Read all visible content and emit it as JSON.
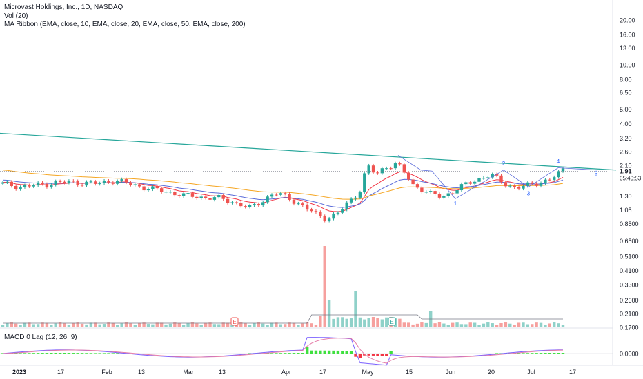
{
  "legend": {
    "title": "Microvast Holdings, Inc., 1D, NASDAQ",
    "volume": "Vol (20)",
    "ribbon": "MA Ribbon (EMA, close, 10, EMA, close, 20, EMA, close, 50, EMA, close, 200)",
    "macd": "MACD 0 Lag (12, 26, 9)"
  },
  "price_label": "1.91",
  "countdown": "05:40:53",
  "colors": {
    "up": "#26a69a",
    "down": "#ef5350",
    "ema10": "#f23645",
    "ema20": "#5b6cd9",
    "ema50": "#f5a623",
    "trendline": "#26a69a",
    "macd_line": "#7b61ff",
    "signal_line": "#e57ca8",
    "hist_up": "#3ee03e",
    "hist_down": "#f23645"
  },
  "chart_data": {
    "type": "candlestick",
    "y_scale": "log",
    "ylim": [
      0.17,
      24
    ],
    "y_ticks": [
      "20.00",
      "16.00",
      "13.00",
      "10.00",
      "8.00",
      "6.50",
      "5.00",
      "4.00",
      "3.20",
      "2.60",
      "2.10",
      "1.91",
      "1.30",
      "1.05",
      "0.8500",
      "0.6500",
      "0.5100",
      "0.4100",
      "0.3300",
      "0.2600",
      "0.2100",
      "0.1700"
    ],
    "x_ticks": [
      "2023",
      "17",
      "Feb",
      "13",
      "Mar",
      "13",
      "Apr",
      "17",
      "May",
      "15",
      "Jun",
      "20",
      "Jul",
      "17"
    ],
    "wave_labels": [
      "1",
      "2",
      "3",
      "4",
      "5"
    ],
    "events": [
      "E",
      "E"
    ],
    "macd_tick": "0.0000"
  }
}
